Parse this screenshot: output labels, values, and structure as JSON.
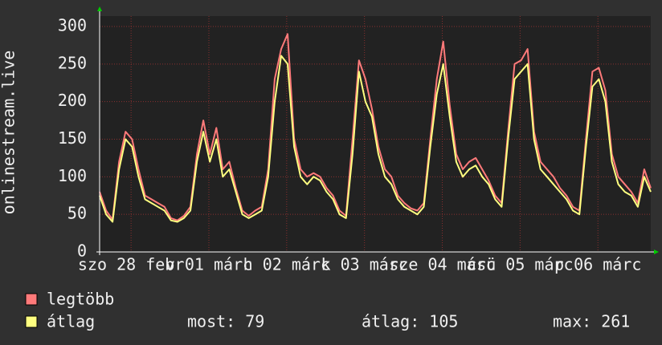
{
  "chart_data": {
    "type": "line",
    "ylabel": "onlinestream.live",
    "x": [
      0,
      2,
      4,
      6,
      8,
      10,
      12,
      14,
      16,
      18,
      20,
      22,
      24,
      26,
      28,
      30,
      32,
      34,
      36,
      38,
      40,
      42,
      44,
      46,
      48,
      50,
      52,
      54,
      56,
      58,
      60,
      62,
      64,
      66,
      68,
      70,
      72,
      74,
      76,
      78,
      80,
      82,
      84,
      86,
      88,
      90,
      92,
      94,
      96,
      98,
      100,
      102,
      104,
      106,
      108,
      110,
      112,
      114,
      116,
      118,
      120,
      122,
      124,
      126,
      128,
      130,
      132,
      134,
      136,
      138,
      140,
      142,
      144,
      146,
      148,
      150,
      152,
      154,
      156,
      158,
      160,
      162,
      164,
      166,
      168,
      170
    ],
    "xlim": [
      0,
      170
    ],
    "xticks": [
      {
        "value": 9.7,
        "label": "szo 28 febr"
      },
      {
        "value": 33.7,
        "label": "v 01 márc"
      },
      {
        "value": 57.7,
        "label": "h 02 márc"
      },
      {
        "value": 81.7,
        "label": "k 03 márc"
      },
      {
        "value": 105.7,
        "label": "sze 04 márc"
      },
      {
        "value": 129.7,
        "label": "csü 05 márc"
      },
      {
        "value": 153.7,
        "label": "p 06 márc"
      }
    ],
    "ylim": [
      0,
      300
    ],
    "yticks": [
      0,
      50,
      100,
      150,
      200,
      250,
      300
    ],
    "grid": true,
    "series": [
      {
        "name": "legtöbb",
        "color": "#ff7a7a",
        "values": [
          80,
          55,
          43,
          120,
          160,
          150,
          110,
          75,
          70,
          65,
          60,
          45,
          42,
          48,
          60,
          130,
          175,
          130,
          165,
          110,
          120,
          85,
          55,
          48,
          55,
          60,
          110,
          230,
          270,
          290,
          150,
          110,
          100,
          105,
          100,
          85,
          75,
          55,
          48,
          150,
          255,
          230,
          190,
          140,
          110,
          100,
          75,
          65,
          58,
          55,
          65,
          150,
          230,
          280,
          195,
          130,
          110,
          120,
          125,
          110,
          95,
          75,
          65,
          160,
          250,
          255,
          270,
          160,
          120,
          110,
          100,
          85,
          75,
          60,
          55,
          150,
          240,
          245,
          215,
          130,
          100,
          90,
          80,
          65,
          110,
          85
        ]
      },
      {
        "name": "átlag",
        "color": "#ffff80",
        "values": [
          75,
          50,
          40,
          110,
          150,
          140,
          100,
          70,
          65,
          60,
          55,
          42,
          40,
          45,
          55,
          120,
          160,
          120,
          150,
          100,
          110,
          80,
          50,
          45,
          50,
          55,
          100,
          200,
          261,
          250,
          140,
          100,
          90,
          100,
          95,
          80,
          70,
          50,
          45,
          130,
          240,
          200,
          180,
          130,
          100,
          90,
          70,
          60,
          55,
          50,
          60,
          140,
          210,
          250,
          180,
          120,
          100,
          110,
          115,
          100,
          90,
          70,
          60,
          150,
          230,
          240,
          250,
          150,
          110,
          100,
          90,
          80,
          70,
          55,
          50,
          140,
          220,
          230,
          200,
          120,
          90,
          80,
          75,
          60,
          100,
          80
        ]
      }
    ],
    "stats": [
      "most: 79",
      "átlag: 105",
      "max: 261"
    ]
  }
}
